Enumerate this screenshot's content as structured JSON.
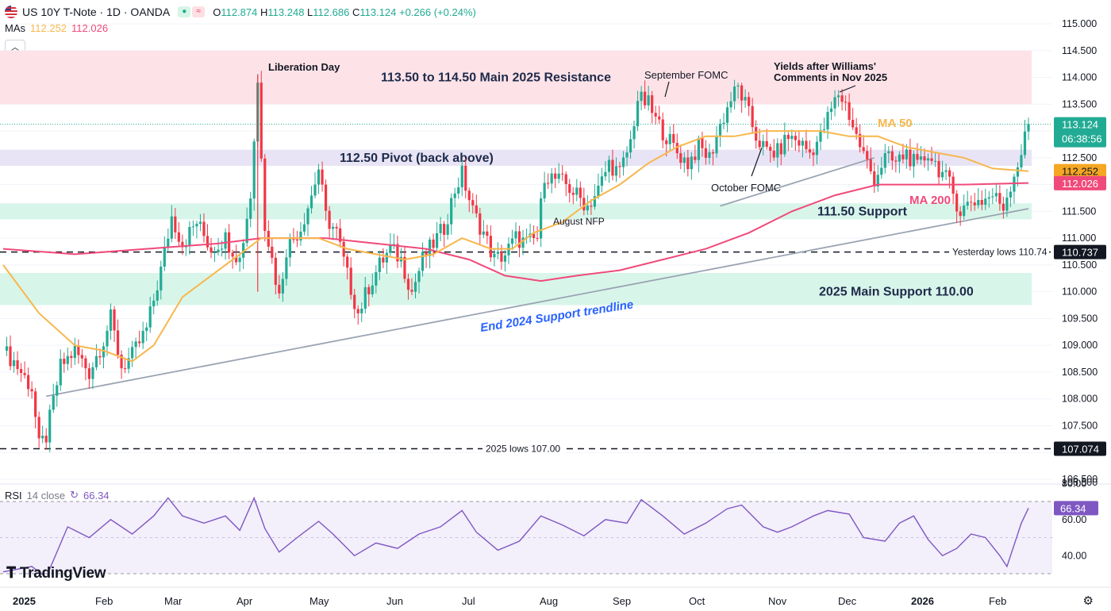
{
  "header": {
    "symbol": "US 10Y T-Note · 1D · OANDA",
    "o_label": "O",
    "o": "112.874",
    "h_label": "H",
    "h": "113.248",
    "l_label": "L",
    "l": "112.686",
    "c_label": "C",
    "c": "113.124",
    "change": "+0.266 (+0.24%)",
    "tp_mode_icon": "≈"
  },
  "mas_legend": {
    "label": "MAs",
    "ma50": "112.252",
    "ma200": "112.026"
  },
  "collapse_icon": "chevron-up-icon",
  "rsi_legend": {
    "label": "RSI",
    "params": "14 close",
    "value": "66.34"
  },
  "logo": {
    "text": "TradingView"
  },
  "colors": {
    "up": "#22ab94",
    "down": "#f23645",
    "ma50": "#f7b74c",
    "ma200": "#f04a7a",
    "rsi": "#7e57c2",
    "resistance": "#fde3e8",
    "pivot": "#e8e4f5",
    "support": "#d8f5ea",
    "trend": "#9aa4b2"
  },
  "chart_data": {
    "type": "candlestick",
    "title": "US 10Y T-Note · 1D · OANDA",
    "y_axis": {
      "range": [
        106.5,
        115.0
      ],
      "ticks": [
        "115.000",
        "114.500",
        "114.000",
        "113.500",
        "113.000",
        "112.500",
        "112.000",
        "111.500",
        "111.000",
        "110.500",
        "110.000",
        "109.500",
        "109.000",
        "108.500",
        "108.000",
        "107.500",
        "107.000",
        "106.500"
      ]
    },
    "x_axis": {
      "labels": [
        "2025",
        "Feb",
        "Mar",
        "Apr",
        "May",
        "Jun",
        "Jul",
        "Aug",
        "Sep",
        "Oct",
        "Nov",
        "Dec",
        "2026",
        "Feb"
      ]
    },
    "price_series": [
      {
        "t": 0,
        "p": 108.9
      },
      {
        "t": 3,
        "p": 108.7
      },
      {
        "t": 5,
        "p": 108.5
      },
      {
        "t": 8,
        "p": 108.2
      },
      {
        "t": 10,
        "p": 107.1
      },
      {
        "t": 12,
        "p": 107.3
      },
      {
        "t": 16,
        "p": 108.6
      },
      {
        "t": 20,
        "p": 108.9
      },
      {
        "t": 24,
        "p": 108.5
      },
      {
        "t": 28,
        "p": 109.1
      },
      {
        "t": 30,
        "p": 109.5
      },
      {
        "t": 33,
        "p": 108.6
      },
      {
        "t": 36,
        "p": 108.8
      },
      {
        "t": 40,
        "p": 109.3
      },
      {
        "t": 44,
        "p": 110.4
      },
      {
        "t": 47,
        "p": 111.4
      },
      {
        "t": 50,
        "p": 110.9
      },
      {
        "t": 54,
        "p": 111.3
      },
      {
        "t": 58,
        "p": 110.8
      },
      {
        "t": 62,
        "p": 111.0
      },
      {
        "t": 66,
        "p": 110.6
      },
      {
        "t": 69,
        "p": 111.8
      },
      {
        "t": 71,
        "p": 113.9
      },
      {
        "t": 73,
        "p": 111.3
      },
      {
        "t": 75,
        "p": 110.6
      },
      {
        "t": 77,
        "p": 109.9
      },
      {
        "t": 79,
        "p": 110.8
      },
      {
        "t": 83,
        "p": 111.2
      },
      {
        "t": 86,
        "p": 111.8
      },
      {
        "t": 88,
        "p": 112.3
      },
      {
        "t": 90,
        "p": 111.4
      },
      {
        "t": 93,
        "p": 111.1
      },
      {
        "t": 96,
        "p": 110.3
      },
      {
        "t": 99,
        "p": 109.6
      },
      {
        "t": 102,
        "p": 110.1
      },
      {
        "t": 105,
        "p": 110.5
      },
      {
        "t": 108,
        "p": 110.8
      },
      {
        "t": 111,
        "p": 110.6
      },
      {
        "t": 114,
        "p": 110.0
      },
      {
        "t": 117,
        "p": 110.6
      },
      {
        "t": 120,
        "p": 110.9
      },
      {
        "t": 123,
        "p": 111.2
      },
      {
        "t": 126,
        "p": 111.9
      },
      {
        "t": 128,
        "p": 112.2
      },
      {
        "t": 131,
        "p": 111.5
      },
      {
        "t": 134,
        "p": 111.1
      },
      {
        "t": 137,
        "p": 110.6
      },
      {
        "t": 140,
        "p": 110.7
      },
      {
        "t": 143,
        "p": 111.0
      },
      {
        "t": 146,
        "p": 110.9
      },
      {
        "t": 149,
        "p": 111.0
      },
      {
        "t": 151,
        "p": 112.2
      },
      {
        "t": 154,
        "p": 112.1
      },
      {
        "t": 157,
        "p": 112.0
      },
      {
        "t": 160,
        "p": 111.8
      },
      {
        "t": 163,
        "p": 111.6
      },
      {
        "t": 166,
        "p": 111.9
      },
      {
        "t": 169,
        "p": 112.4
      },
      {
        "t": 172,
        "p": 112.2
      },
      {
        "t": 175,
        "p": 112.8
      },
      {
        "t": 177,
        "p": 113.6
      },
      {
        "t": 180,
        "p": 113.5
      },
      {
        "t": 182,
        "p": 113.2
      },
      {
        "t": 185,
        "p": 112.9
      },
      {
        "t": 188,
        "p": 112.6
      },
      {
        "t": 191,
        "p": 112.4
      },
      {
        "t": 194,
        "p": 112.7
      },
      {
        "t": 197,
        "p": 112.5
      },
      {
        "t": 200,
        "p": 113.1
      },
      {
        "t": 203,
        "p": 113.6
      },
      {
        "t": 205,
        "p": 113.8
      },
      {
        "t": 207,
        "p": 113.5
      },
      {
        "t": 210,
        "p": 112.9
      },
      {
        "t": 213,
        "p": 112.6
      },
      {
        "t": 216,
        "p": 112.6
      },
      {
        "t": 219,
        "p": 112.9
      },
      {
        "t": 222,
        "p": 112.8
      },
      {
        "t": 225,
        "p": 112.6
      },
      {
        "t": 228,
        "p": 112.9
      },
      {
        "t": 231,
        "p": 113.4
      },
      {
        "t": 233,
        "p": 113.7
      },
      {
        "t": 235,
        "p": 113.5
      },
      {
        "t": 238,
        "p": 112.9
      },
      {
        "t": 241,
        "p": 112.4
      },
      {
        "t": 243,
        "p": 112.1
      },
      {
        "t": 246,
        "p": 112.5
      },
      {
        "t": 249,
        "p": 112.4
      },
      {
        "t": 252,
        "p": 112.6
      },
      {
        "t": 255,
        "p": 112.3
      },
      {
        "t": 258,
        "p": 112.6
      },
      {
        "t": 261,
        "p": 112.3
      },
      {
        "t": 264,
        "p": 112.0
      },
      {
        "t": 267,
        "p": 111.5
      },
      {
        "t": 270,
        "p": 111.7
      },
      {
        "t": 273,
        "p": 111.7
      },
      {
        "t": 276,
        "p": 111.8
      },
      {
        "t": 279,
        "p": 111.6
      },
      {
        "t": 282,
        "p": 112.2
      },
      {
        "t": 284,
        "p": 112.6
      },
      {
        "t": 286,
        "p": 113.12
      }
    ],
    "ma50": [
      [
        0,
        110.5
      ],
      [
        10,
        109.6
      ],
      [
        20,
        109.0
      ],
      [
        28,
        108.9
      ],
      [
        36,
        108.7
      ],
      [
        42,
        109.0
      ],
      [
        50,
        109.9
      ],
      [
        58,
        110.3
      ],
      [
        66,
        110.7
      ],
      [
        72,
        111.0
      ],
      [
        80,
        111.0
      ],
      [
        88,
        111.0
      ],
      [
        96,
        110.8
      ],
      [
        104,
        110.7
      ],
      [
        112,
        110.6
      ],
      [
        120,
        110.7
      ],
      [
        128,
        111.0
      ],
      [
        136,
        110.8
      ],
      [
        142,
        110.8
      ],
      [
        148,
        111.1
      ],
      [
        156,
        111.3
      ],
      [
        164,
        111.7
      ],
      [
        172,
        112.0
      ],
      [
        180,
        112.4
      ],
      [
        188,
        112.7
      ],
      [
        196,
        112.9
      ],
      [
        204,
        112.9
      ],
      [
        212,
        113.0
      ],
      [
        220,
        113.0
      ],
      [
        228,
        113.0
      ],
      [
        236,
        112.9
      ],
      [
        244,
        112.9
      ],
      [
        252,
        112.7
      ],
      [
        260,
        112.6
      ],
      [
        268,
        112.5
      ],
      [
        276,
        112.3
      ],
      [
        286,
        112.25
      ]
    ],
    "ma200": [
      [
        0,
        110.8
      ],
      [
        20,
        110.7
      ],
      [
        40,
        110.8
      ],
      [
        60,
        110.9
      ],
      [
        72,
        111.0
      ],
      [
        90,
        111.0
      ],
      [
        104,
        110.9
      ],
      [
        118,
        110.8
      ],
      [
        130,
        110.6
      ],
      [
        140,
        110.3
      ],
      [
        150,
        110.2
      ],
      [
        160,
        110.3
      ],
      [
        172,
        110.4
      ],
      [
        184,
        110.6
      ],
      [
        196,
        110.8
      ],
      [
        208,
        111.1
      ],
      [
        220,
        111.5
      ],
      [
        232,
        111.8
      ],
      [
        244,
        112.0
      ],
      [
        256,
        112.0
      ],
      [
        268,
        112.0
      ],
      [
        286,
        112.03
      ]
    ],
    "zones": [
      {
        "name": "resistance",
        "from": 113.5,
        "to": 114.5,
        "label": "113.50 to 114.50 Main 2025 Resistance"
      },
      {
        "name": "pivot",
        "from": 112.35,
        "to": 112.65,
        "label": "112.50 Pivot (back above)"
      },
      {
        "name": "support-111.5",
        "from": 111.35,
        "to": 111.65,
        "label": "111.50 Support"
      },
      {
        "name": "main-support",
        "from": 109.75,
        "to": 110.35,
        "label": "2025 Main Support 110.00"
      }
    ],
    "lines": [
      {
        "name": "yesterday-lows",
        "value": 110.74,
        "label": "Yesterday lows 110.74",
        "tag": "110.737"
      },
      {
        "name": "lows-2025",
        "value": 107.07,
        "label": "2025 lows 107.00",
        "tag": "107.074"
      }
    ],
    "trendlines": [
      {
        "name": "end-2024-support",
        "label": "End 2024 Support trendline",
        "from": [
          12,
          108.05
        ],
        "to": [
          286,
          111.55
        ]
      },
      {
        "name": "fomc-trendline",
        "from": [
          200,
          111.6
        ],
        "to": [
          243,
          112.5
        ]
      }
    ],
    "annotations": [
      {
        "name": "liberation-day",
        "text": "Liberation Day"
      },
      {
        "name": "september-fomc",
        "text": "September FOMC"
      },
      {
        "name": "yields-williams",
        "text": "Yields after Williams' Comments in Nov 2025"
      },
      {
        "name": "october-fomc",
        "text": "October FOMC"
      },
      {
        "name": "august-nfp",
        "text": "August NFP"
      },
      {
        "name": "ma50-label",
        "text": "MA 50"
      },
      {
        "name": "ma200-label",
        "text": "MA 200"
      }
    ],
    "price_tags": [
      {
        "name": "last",
        "value": "113.124",
        "sub": "06:38:56"
      },
      {
        "name": "ma50",
        "value": "112.252"
      },
      {
        "name": "ma200",
        "value": "112.026"
      }
    ],
    "rsi": {
      "params": "14 close",
      "last": "66.34",
      "levels": [
        70,
        30
      ],
      "ticks": [
        "80.00",
        "60.00",
        "40.00"
      ],
      "series": [
        [
          0,
          31
        ],
        [
          8,
          34
        ],
        [
          12,
          28
        ],
        [
          18,
          56
        ],
        [
          24,
          50
        ],
        [
          30,
          60
        ],
        [
          36,
          52
        ],
        [
          42,
          62
        ],
        [
          46,
          72
        ],
        [
          50,
          62
        ],
        [
          56,
          58
        ],
        [
          62,
          62
        ],
        [
          66,
          54
        ],
        [
          70,
          72
        ],
        [
          73,
          55
        ],
        [
          77,
          42
        ],
        [
          82,
          50
        ],
        [
          88,
          59
        ],
        [
          92,
          52
        ],
        [
          98,
          40
        ],
        [
          104,
          47
        ],
        [
          110,
          44
        ],
        [
          116,
          52
        ],
        [
          122,
          56
        ],
        [
          128,
          65
        ],
        [
          132,
          53
        ],
        [
          138,
          43
        ],
        [
          144,
          48
        ],
        [
          150,
          62
        ],
        [
          156,
          57
        ],
        [
          162,
          51
        ],
        [
          168,
          60
        ],
        [
          174,
          58
        ],
        [
          178,
          71
        ],
        [
          184,
          62
        ],
        [
          190,
          52
        ],
        [
          196,
          58
        ],
        [
          202,
          66
        ],
        [
          206,
          68
        ],
        [
          212,
          56
        ],
        [
          216,
          53
        ],
        [
          220,
          56
        ],
        [
          226,
          62
        ],
        [
          230,
          65
        ],
        [
          236,
          63
        ],
        [
          240,
          50
        ],
        [
          246,
          48
        ],
        [
          250,
          58
        ],
        [
          254,
          62
        ],
        [
          258,
          49
        ],
        [
          262,
          40
        ],
        [
          266,
          44
        ],
        [
          270,
          52
        ],
        [
          274,
          50
        ],
        [
          278,
          40
        ],
        [
          280,
          34
        ],
        [
          284,
          58
        ],
        [
          286,
          66.34
        ]
      ]
    }
  }
}
